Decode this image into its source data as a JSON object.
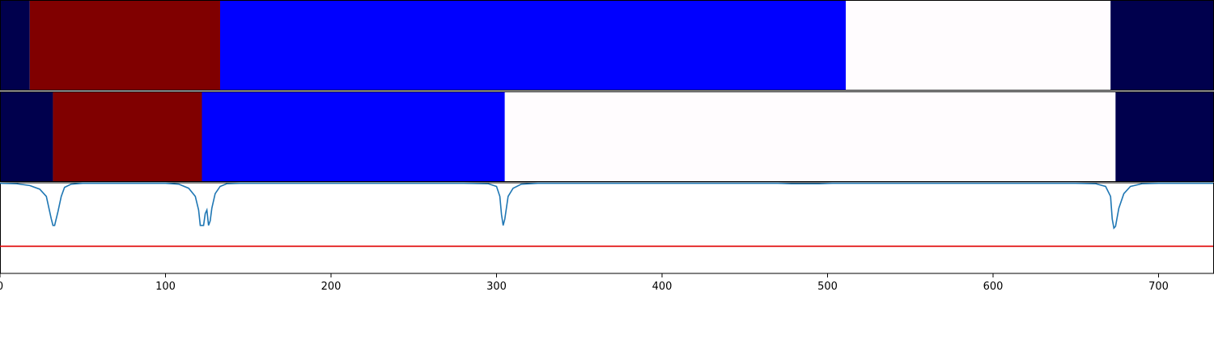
{
  "chart_data": {
    "type": "segmentation-timeline",
    "x_axis": {
      "range": [
        0,
        733
      ],
      "ticks": [
        0,
        100,
        200,
        300,
        400,
        500,
        600,
        700
      ],
      "tick_labels": [
        "0",
        "100",
        "200",
        "300",
        "400",
        "500",
        "600",
        "700"
      ]
    },
    "colors": {
      "dark_navy": "#00004d",
      "dark_red": "#800000",
      "blue": "#0000ff",
      "near_white": "#fffcfe",
      "line": "#1f77b4",
      "threshold": "#e00000"
    },
    "segment_rows": [
      {
        "segments": [
          {
            "start": 0,
            "end": 18,
            "color": "dark_navy"
          },
          {
            "start": 18,
            "end": 133,
            "color": "dark_red"
          },
          {
            "start": 133,
            "end": 511,
            "color": "blue"
          },
          {
            "start": 511,
            "end": 671,
            "color": "near_white"
          },
          {
            "start": 671,
            "end": 733,
            "color": "dark_navy"
          }
        ]
      },
      {
        "segments": [
          {
            "start": 0,
            "end": 32,
            "color": "dark_navy"
          },
          {
            "start": 32,
            "end": 122,
            "color": "dark_red"
          },
          {
            "start": 122,
            "end": 305,
            "color": "blue"
          },
          {
            "start": 305,
            "end": 674,
            "color": "near_white"
          },
          {
            "start": 674,
            "end": 733,
            "color": "dark_navy"
          }
        ]
      }
    ],
    "signal": {
      "ylim": [
        0,
        1
      ],
      "threshold": 0.3,
      "points": [
        [
          0,
          0.995
        ],
        [
          10,
          0.99
        ],
        [
          18,
          0.97
        ],
        [
          24,
          0.93
        ],
        [
          28,
          0.85
        ],
        [
          31,
          0.6
        ],
        [
          32,
          0.53
        ],
        [
          33,
          0.53
        ],
        [
          35,
          0.68
        ],
        [
          37,
          0.85
        ],
        [
          39,
          0.95
        ],
        [
          43,
          0.985
        ],
        [
          50,
          0.995
        ],
        [
          100,
          0.995
        ],
        [
          108,
          0.985
        ],
        [
          114,
          0.94
        ],
        [
          118,
          0.85
        ],
        [
          120,
          0.7
        ],
        [
          121,
          0.53
        ],
        [
          123,
          0.53
        ],
        [
          124,
          0.66
        ],
        [
          125,
          0.7
        ],
        [
          126,
          0.53
        ],
        [
          127,
          0.58
        ],
        [
          128,
          0.72
        ],
        [
          130,
          0.88
        ],
        [
          133,
          0.96
        ],
        [
          137,
          0.99
        ],
        [
          145,
          0.995
        ],
        [
          280,
          0.995
        ],
        [
          295,
          0.99
        ],
        [
          300,
          0.96
        ],
        [
          302,
          0.85
        ],
        [
          303,
          0.65
        ],
        [
          304,
          0.53
        ],
        [
          305,
          0.6
        ],
        [
          307,
          0.85
        ],
        [
          310,
          0.94
        ],
        [
          315,
          0.985
        ],
        [
          325,
          0.995
        ],
        [
          470,
          0.995
        ],
        [
          478,
          0.99
        ],
        [
          495,
          0.99
        ],
        [
          503,
          0.995
        ],
        [
          650,
          0.995
        ],
        [
          662,
          0.99
        ],
        [
          668,
          0.96
        ],
        [
          671,
          0.85
        ],
        [
          672,
          0.6
        ],
        [
          673,
          0.5
        ],
        [
          674,
          0.52
        ],
        [
          676,
          0.72
        ],
        [
          679,
          0.88
        ],
        [
          683,
          0.96
        ],
        [
          690,
          0.99
        ],
        [
          700,
          0.995
        ],
        [
          733,
          0.995
        ]
      ]
    }
  }
}
